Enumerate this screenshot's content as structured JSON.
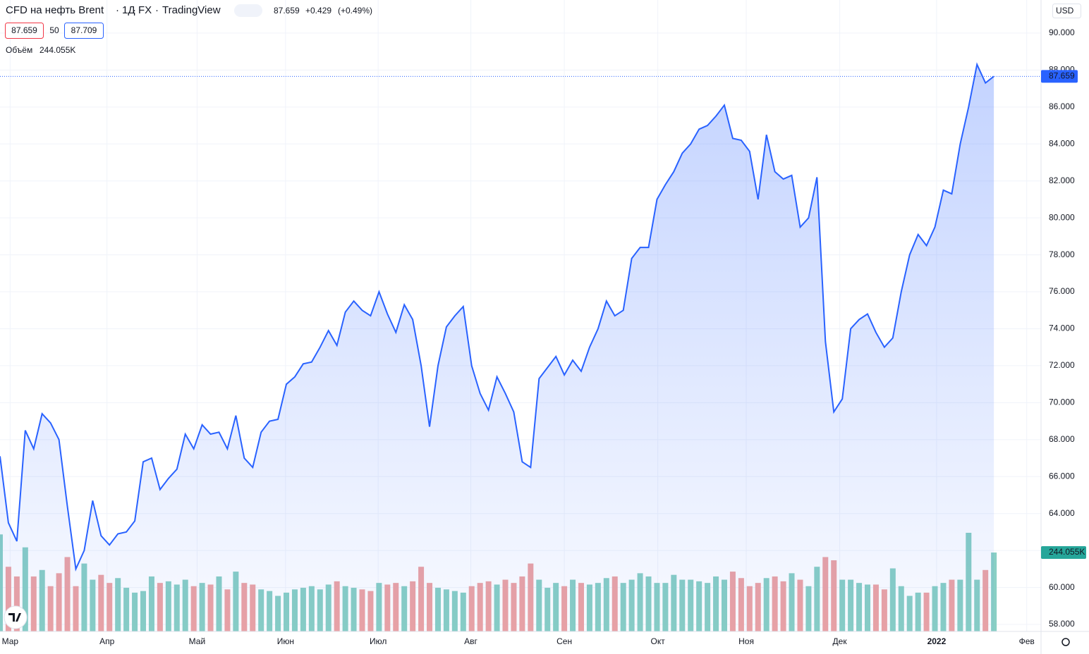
{
  "header": {
    "title": "CFD на нефть Brent",
    "interval": "1Д",
    "exchange": "FX",
    "source": "TradingView",
    "last": "87.659",
    "change": "+0.429",
    "change_pct": "(+0.49%)",
    "bid": "87.659",
    "spread": "50",
    "ask": "87.709",
    "currency": "USD"
  },
  "chart_data": {
    "type": "line",
    "title": "CFD на нефть Brent",
    "color": "#2962ff",
    "grid": true,
    "values": [
      67.1,
      63.5,
      62.5,
      68.5,
      67.5,
      69.4,
      68.9,
      68.0,
      64.4,
      61.0,
      62.0,
      64.7,
      62.8,
      62.3,
      62.9,
      63.0,
      63.6,
      66.8,
      67.0,
      65.3,
      65.9,
      66.4,
      68.3,
      67.5,
      68.8,
      68.3,
      68.4,
      67.5,
      69.3,
      67.0,
      66.5,
      68.4,
      69.0,
      69.1,
      71.0,
      71.4,
      72.1,
      72.2,
      73.0,
      73.9,
      73.1,
      74.9,
      75.5,
      75.0,
      74.7,
      76.0,
      74.8,
      73.8,
      75.3,
      74.5,
      72.0,
      68.7,
      72.0,
      74.1,
      74.7,
      75.2,
      72.0,
      70.5,
      69.6,
      71.4,
      70.5,
      69.5,
      66.8,
      66.5,
      71.3,
      71.9,
      72.5,
      71.5,
      72.3,
      71.7,
      73.0,
      74.0,
      75.5,
      74.7,
      75.0,
      77.8,
      78.4,
      78.4,
      81.0,
      81.8,
      82.5,
      83.5,
      84.0,
      84.8,
      85.0,
      85.5,
      86.1,
      84.3,
      84.2,
      83.6,
      81.0,
      84.5,
      82.5,
      82.1,
      82.3,
      79.5,
      80.0,
      82.2,
      73.3,
      69.5,
      70.2,
      74.0,
      74.5,
      74.8,
      73.8,
      73.0,
      73.5,
      76.0,
      78.0,
      79.1,
      78.5,
      79.5,
      81.5,
      81.3,
      84.0,
      86.0,
      88.3,
      87.3,
      87.659
    ],
    "volume": {
      "name": "Объём",
      "up_color": "#89cfc4",
      "down_color": "#eda3a3",
      "last_label": "244.055K",
      "values": [
        300000,
        200000,
        170000,
        260000,
        170000,
        190000,
        140000,
        180000,
        230000,
        140000,
        210000,
        160000,
        175000,
        150000,
        165000,
        135000,
        120000,
        125000,
        170000,
        150000,
        155000,
        145000,
        160000,
        140000,
        150000,
        145000,
        170000,
        130000,
        185000,
        150000,
        145000,
        130000,
        125000,
        110000,
        120000,
        130000,
        135000,
        140000,
        130000,
        145000,
        155000,
        140000,
        135000,
        130000,
        125000,
        150000,
        145000,
        150000,
        140000,
        155000,
        200000,
        150000,
        135000,
        130000,
        125000,
        120000,
        140000,
        150000,
        155000,
        145000,
        160000,
        150000,
        170000,
        210000,
        160000,
        135000,
        150000,
        140000,
        160000,
        150000,
        145000,
        150000,
        165000,
        170000,
        150000,
        160000,
        180000,
        170000,
        150000,
        150000,
        175000,
        160000,
        160000,
        155000,
        150000,
        170000,
        160000,
        185000,
        165000,
        140000,
        150000,
        165000,
        170000,
        155000,
        180000,
        160000,
        140000,
        200000,
        230000,
        220000,
        160000,
        160000,
        150000,
        145000,
        145000,
        130000,
        195000,
        140000,
        110000,
        120000,
        120000,
        140000,
        150000,
        160000,
        160000,
        305000,
        160000,
        190000,
        244055
      ]
    },
    "ylim": [
      57.62,
      91.79
    ],
    "yticks": [
      {
        "value": 58,
        "label": "58.000"
      },
      {
        "value": 60,
        "label": "60.000"
      },
      {
        "value": 62,
        "label": "62.000"
      },
      {
        "value": 64,
        "label": "64.000"
      },
      {
        "value": 66,
        "label": "66.000"
      },
      {
        "value": 68,
        "label": "68.000"
      },
      {
        "value": 70,
        "label": "70.000"
      },
      {
        "value": 72,
        "label": "72.000"
      },
      {
        "value": 74,
        "label": "74.000"
      },
      {
        "value": 76,
        "label": "76.000"
      },
      {
        "value": 78,
        "label": "78.000"
      },
      {
        "value": 80,
        "label": "80.000"
      },
      {
        "value": 82,
        "label": "82.000"
      },
      {
        "value": 84,
        "label": "84.000"
      },
      {
        "value": 86,
        "label": "86.000"
      },
      {
        "value": 88,
        "label": "88.000"
      },
      {
        "value": 90,
        "label": "90.000"
      }
    ],
    "xlim": [
      0,
      123.6
    ],
    "xticks": [
      {
        "value": 1.2,
        "label": "Мар"
      },
      {
        "value": 12.7,
        "label": "Апр"
      },
      {
        "value": 23.4,
        "label": "Май"
      },
      {
        "value": 33.9,
        "label": "Июн"
      },
      {
        "value": 44.9,
        "label": "Июл"
      },
      {
        "value": 55.9,
        "label": "Авг"
      },
      {
        "value": 67.0,
        "label": "Сен"
      },
      {
        "value": 78.1,
        "label": "Окт"
      },
      {
        "value": 88.6,
        "label": "Ноя"
      },
      {
        "value": 99.7,
        "label": "Дек"
      },
      {
        "value": 111.2,
        "label": "2022"
      },
      {
        "value": 121.9,
        "label": "Фев"
      }
    ]
  }
}
